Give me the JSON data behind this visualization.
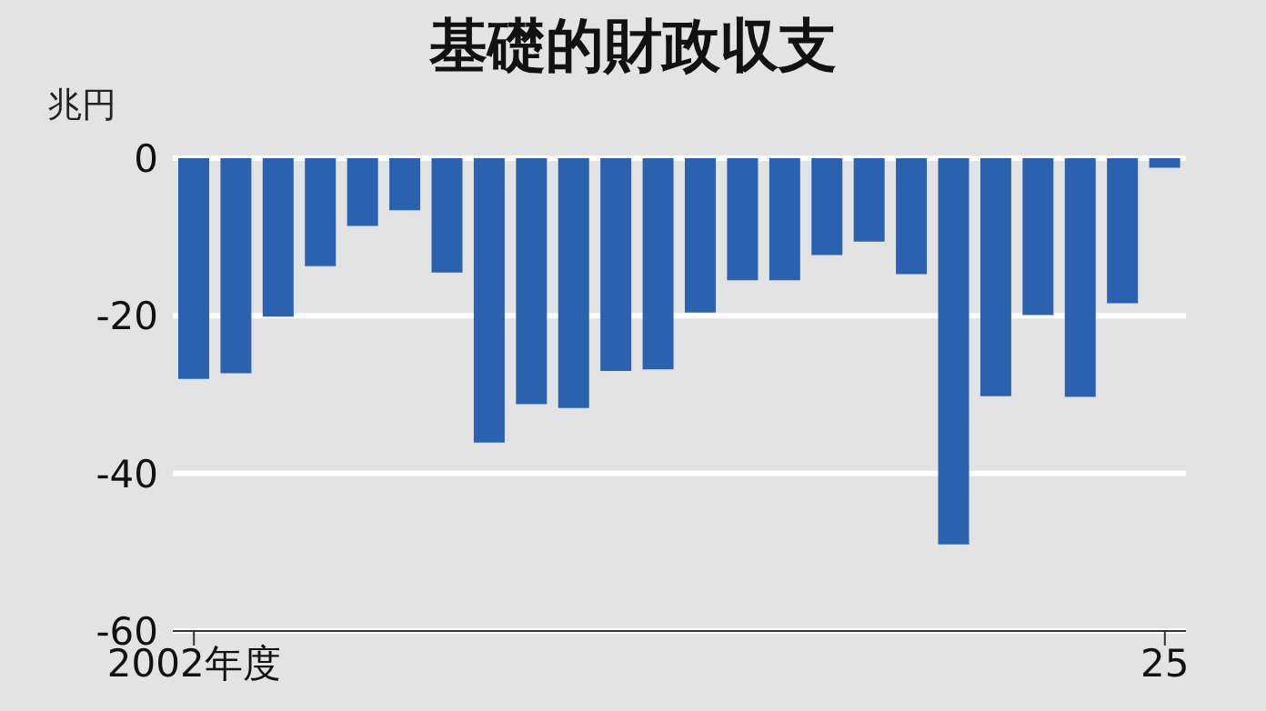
{
  "chart_data": {
    "type": "bar",
    "title": "基礎的財政収支",
    "ylabel": "兆円",
    "categories": [
      "2002年度",
      null,
      null,
      null,
      null,
      null,
      null,
      null,
      null,
      null,
      null,
      null,
      null,
      null,
      null,
      null,
      null,
      null,
      null,
      null,
      null,
      null,
      null,
      "25"
    ],
    "values": [
      -28,
      -27.3,
      -20.1,
      -13.7,
      -8.6,
      -6.6,
      -14.5,
      -36.1,
      -31.2,
      -31.7,
      -27,
      -26.8,
      -19.6,
      -15.5,
      -15.5,
      -12.3,
      -10.6,
      -14.7,
      -49,
      -30.2,
      -19.9,
      -30.3,
      -18.4,
      -1.2
    ],
    "color": "#2a62b0",
    "ylim": [
      -60,
      0
    ],
    "yticks": [
      0,
      -20,
      -40,
      -60
    ],
    "grid": "y"
  }
}
